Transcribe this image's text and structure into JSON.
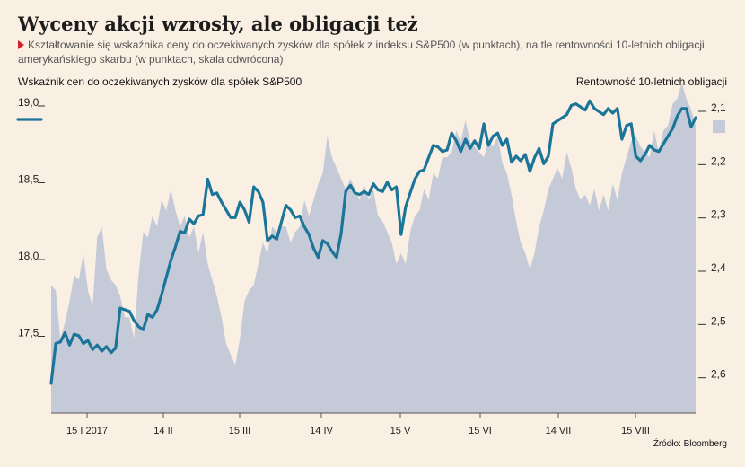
{
  "header": {
    "title": "Wyceny akcji wzrosły, ale obligacji też",
    "subtitle": "Kształtowanie się wskaźnika ceny do oczekiwanych zysków dla spółek z indeksu S&P500 (w punktach), na tle rentowności 10-letnich obligacji amerykańskiego skarbu (w punktach, skala odwrócona)"
  },
  "source": "Źródło: Bloomberg",
  "colors": {
    "background": "#faefe3",
    "line": "#1a7599",
    "area": "#c5cad8"
  },
  "chart_data": {
    "type": "line",
    "x_ticks": [
      "15 I 2017",
      "14 II",
      "15 III",
      "14 IV",
      "15 V",
      "15 VI",
      "14 VII",
      "15 VIII"
    ],
    "y_left": {
      "label": "Wskaźnik cen do oczekiwanych zysków dla spółek S&P500",
      "ticks": [
        "19,0",
        "18,5",
        "18,0",
        "17,5"
      ],
      "range": [
        17.0,
        19.0
      ]
    },
    "y_right": {
      "label": "Rentowność 10-letnich obligacji",
      "ticks": [
        "2,1",
        "2,2",
        "2,3",
        "2,4",
        "2,5",
        "2,6"
      ],
      "range": [
        2.1,
        2.7
      ],
      "inverted": true
    },
    "legend": "left and right of plot, color swatches",
    "grid": false,
    "series": [
      {
        "name": "Wskaźnik cen do oczekiwanych zysków dla spółek S&P500",
        "axis": "left",
        "style": "line",
        "values": [
          17.17,
          17.43,
          17.44,
          17.5,
          17.42,
          17.49,
          17.48,
          17.43,
          17.45,
          17.39,
          17.42,
          17.38,
          17.41,
          17.37,
          17.4,
          17.66,
          17.65,
          17.64,
          17.58,
          17.54,
          17.52,
          17.62,
          17.6,
          17.65,
          17.75,
          17.86,
          17.97,
          18.06,
          18.16,
          18.15,
          18.24,
          18.21,
          18.26,
          18.27,
          18.5,
          18.4,
          18.41,
          18.35,
          18.3,
          18.25,
          18.25,
          18.35,
          18.3,
          18.22,
          18.45,
          18.42,
          18.35,
          18.1,
          18.13,
          18.11,
          18.22,
          18.33,
          18.3,
          18.25,
          18.26,
          18.19,
          18.14,
          18.05,
          17.99,
          18.1,
          18.08,
          18.03,
          17.99,
          18.15,
          18.42,
          18.46,
          18.41,
          18.4,
          18.42,
          18.4,
          18.47,
          18.43,
          18.42,
          18.48,
          18.43,
          18.45,
          18.14,
          18.32,
          18.41,
          18.5,
          18.55,
          18.56,
          18.64,
          18.72,
          18.71,
          18.68,
          18.69,
          18.8,
          18.75,
          18.68,
          18.76,
          18.7,
          18.75,
          18.7,
          18.86,
          18.72,
          18.78,
          18.8,
          18.72,
          18.76,
          18.61,
          18.65,
          18.62,
          18.66,
          18.55,
          18.64,
          18.7,
          18.6,
          18.65,
          18.86,
          18.88,
          18.9,
          18.92,
          18.98,
          18.99,
          18.97,
          18.95,
          19.01,
          18.96,
          18.94,
          18.92,
          18.96,
          18.93,
          18.96,
          18.76,
          18.85,
          18.86,
          18.65,
          18.62,
          18.66,
          18.72,
          18.69,
          18.68,
          18.73,
          18.78,
          18.83,
          18.91,
          18.96,
          18.96,
          18.84,
          18.9
        ]
      },
      {
        "name": "Rentowność 10-letnich obligacji",
        "axis": "right",
        "style": "area",
        "values": [
          2.46,
          2.47,
          2.56,
          2.53,
          2.49,
          2.44,
          2.45,
          2.4,
          2.47,
          2.5,
          2.37,
          2.35,
          2.43,
          2.45,
          2.46,
          2.48,
          2.52,
          2.52,
          2.56,
          2.44,
          2.36,
          2.37,
          2.33,
          2.35,
          2.3,
          2.32,
          2.28,
          2.32,
          2.35,
          2.33,
          2.37,
          2.35,
          2.4,
          2.36,
          2.42,
          2.45,
          2.48,
          2.52,
          2.57,
          2.59,
          2.61,
          2.56,
          2.49,
          2.47,
          2.46,
          2.42,
          2.38,
          2.4,
          2.35,
          2.36,
          2.35,
          2.35,
          2.38,
          2.36,
          2.35,
          2.3,
          2.33,
          2.3,
          2.27,
          2.25,
          2.18,
          2.22,
          2.24,
          2.26,
          2.28,
          2.26,
          2.28,
          2.3,
          2.27,
          2.3,
          2.28,
          2.33,
          2.34,
          2.36,
          2.38,
          2.42,
          2.4,
          2.42,
          2.36,
          2.33,
          2.32,
          2.28,
          2.3,
          2.25,
          2.26,
          2.22,
          2.22,
          2.21,
          2.17,
          2.19,
          2.15,
          2.19,
          2.2,
          2.21,
          2.22,
          2.19,
          2.2,
          2.18,
          2.23,
          2.25,
          2.29,
          2.34,
          2.38,
          2.4,
          2.43,
          2.4,
          2.35,
          2.32,
          2.28,
          2.26,
          2.24,
          2.26,
          2.21,
          2.24,
          2.28,
          2.3,
          2.29,
          2.31,
          2.28,
          2.32,
          2.29,
          2.32,
          2.27,
          2.3,
          2.25,
          2.22,
          2.19,
          2.18,
          2.2,
          2.21,
          2.22,
          2.17,
          2.21,
          2.17,
          2.16,
          2.12,
          2.11,
          2.08,
          2.11,
          2.13,
          2.16
        ]
      }
    ]
  }
}
